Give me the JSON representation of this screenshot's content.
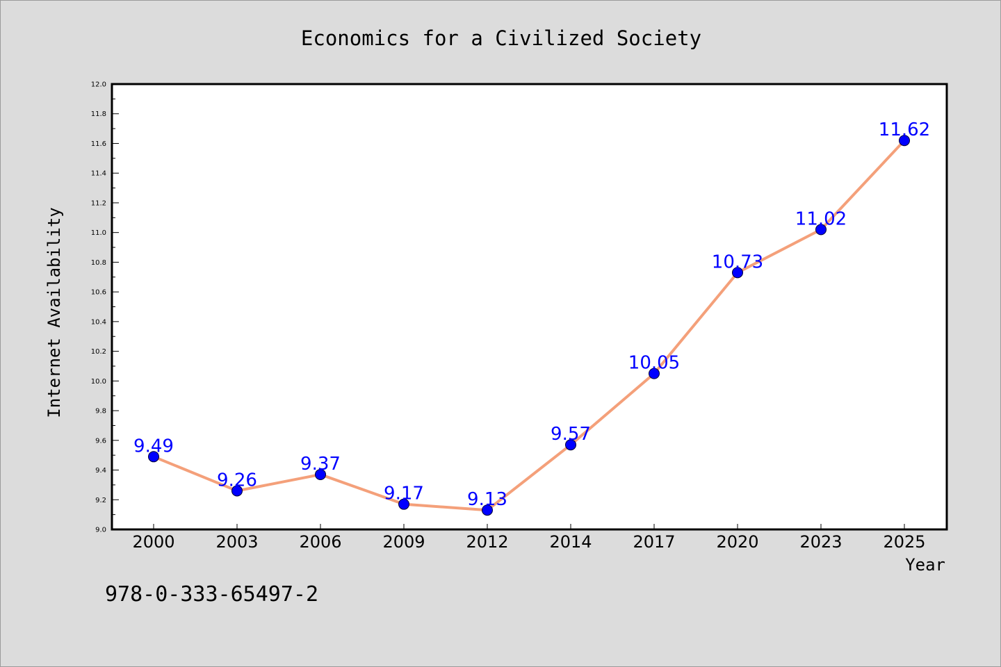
{
  "chart_data": {
    "type": "line",
    "title": "Economics for a Civilized Society",
    "xlabel": "Year",
    "ylabel": "Internet Availability",
    "categories": [
      "2000",
      "2003",
      "2006",
      "2009",
      "2012",
      "2014",
      "2017",
      "2020",
      "2023",
      "2025"
    ],
    "values": [
      9.49,
      9.26,
      9.37,
      9.17,
      9.13,
      9.57,
      10.05,
      10.73,
      11.02,
      11.62
    ],
    "data_labels": [
      "9.49",
      "9.26",
      "9.37",
      "9.17",
      "9.13",
      "9.57",
      "10.05",
      "10.73",
      "11.02",
      "11.62"
    ],
    "ylim": [
      9.0,
      12.0
    ],
    "yticks": [
      "9.0",
      "9.2",
      "9.4",
      "9.6",
      "9.8",
      "10.0",
      "10.2",
      "10.4",
      "10.6",
      "10.8",
      "11.0",
      "11.2",
      "11.4",
      "11.6",
      "11.8",
      "12.0"
    ],
    "grid": false,
    "legend": "none",
    "line_color": "#f4a07a",
    "marker_color": "#0000ff",
    "label_color": "#0000ff"
  },
  "footer": {
    "isbn": "978-0-333-65497-2"
  }
}
